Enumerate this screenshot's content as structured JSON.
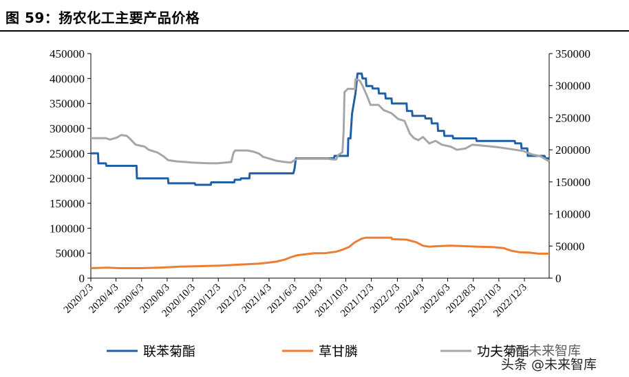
{
  "title": "图 59：扬农化工主要产品价格",
  "watermark": {
    "top": "未来智库",
    "bottom": "头条 @未来智库"
  },
  "chart_data": {
    "type": "line",
    "title": "",
    "x_ticks": [
      "2020/2/3",
      "2020/4/3",
      "2020/6/3",
      "2020/8/3",
      "2020/10/3",
      "2020/12/3",
      "2021/2/3",
      "2021/4/3",
      "2021/6/3",
      "2021/8/3",
      "2021/10/3",
      "2021/12/3",
      "2022/2/3",
      "2022/4/3",
      "2022/6/3",
      "2022/8/3",
      "2022/10/3",
      "2022/12/3"
    ],
    "x_range": [
      "2020-02-03",
      "2023-01-31"
    ],
    "y_left": {
      "lim": [
        0,
        450000
      ],
      "ticks": [
        0,
        50000,
        100000,
        150000,
        200000,
        250000,
        300000,
        350000,
        400000,
        450000
      ]
    },
    "y_right": {
      "lim": [
        0,
        350000
      ],
      "ticks": [
        0,
        50000,
        100000,
        150000,
        200000,
        250000,
        300000,
        350000
      ]
    },
    "legend_position": "bottom",
    "series": [
      {
        "name": "联苯菊酯",
        "axis": "left",
        "color": "#1f5fa8",
        "points": [
          [
            "2020-02-03",
            250000
          ],
          [
            "2020-02-20",
            250000
          ],
          [
            "2020-02-21",
            230000
          ],
          [
            "2020-03-10",
            230000
          ],
          [
            "2020-03-11",
            225000
          ],
          [
            "2020-05-22",
            225000
          ],
          [
            "2020-05-23",
            200000
          ],
          [
            "2020-08-05",
            200000
          ],
          [
            "2020-08-06",
            190000
          ],
          [
            "2020-10-08",
            190000
          ],
          [
            "2020-10-09",
            187000
          ],
          [
            "2020-11-15",
            187000
          ],
          [
            "2020-11-16",
            192000
          ],
          [
            "2021-01-10",
            192000
          ],
          [
            "2021-01-11",
            197000
          ],
          [
            "2021-01-25",
            197000
          ],
          [
            "2021-01-26",
            200000
          ],
          [
            "2021-02-15",
            200000
          ],
          [
            "2021-02-16",
            210000
          ],
          [
            "2021-05-31",
            210000
          ],
          [
            "2021-06-03",
            220000
          ],
          [
            "2021-06-06",
            240000
          ],
          [
            "2021-09-05",
            240000
          ],
          [
            "2021-09-06",
            245000
          ],
          [
            "2021-10-08",
            245000
          ],
          [
            "2021-10-09",
            280000
          ],
          [
            "2021-10-14",
            280000
          ],
          [
            "2021-10-18",
            330000
          ],
          [
            "2021-10-26",
            370000
          ],
          [
            "2021-10-31",
            410000
          ],
          [
            "2021-11-10",
            410000
          ],
          [
            "2021-11-12",
            400000
          ],
          [
            "2021-11-20",
            400000
          ],
          [
            "2021-11-21",
            385000
          ],
          [
            "2021-12-05",
            385000
          ],
          [
            "2021-12-06",
            380000
          ],
          [
            "2021-12-20",
            380000
          ],
          [
            "2021-12-21",
            370000
          ],
          [
            "2022-01-05",
            370000
          ],
          [
            "2022-01-06",
            360000
          ],
          [
            "2022-01-20",
            360000
          ],
          [
            "2022-01-21",
            350000
          ],
          [
            "2022-02-25",
            350000
          ],
          [
            "2022-02-26",
            335000
          ],
          [
            "2022-03-10",
            335000
          ],
          [
            "2022-03-11",
            325000
          ],
          [
            "2022-04-10",
            325000
          ],
          [
            "2022-04-11",
            320000
          ],
          [
            "2022-04-25",
            320000
          ],
          [
            "2022-04-26",
            310000
          ],
          [
            "2022-05-10",
            310000
          ],
          [
            "2022-05-11",
            295000
          ],
          [
            "2022-05-25",
            295000
          ],
          [
            "2022-05-26",
            285000
          ],
          [
            "2022-06-15",
            285000
          ],
          [
            "2022-06-16",
            280000
          ],
          [
            "2022-08-10",
            280000
          ],
          [
            "2022-08-11",
            275000
          ],
          [
            "2022-11-10",
            275000
          ],
          [
            "2022-11-11",
            270000
          ],
          [
            "2022-11-25",
            270000
          ],
          [
            "2022-11-26",
            260000
          ],
          [
            "2022-12-10",
            260000
          ],
          [
            "2022-12-11",
            245000
          ],
          [
            "2023-01-20",
            245000
          ],
          [
            "2023-01-22",
            240000
          ],
          [
            "2023-01-31",
            240000
          ]
        ]
      },
      {
        "name": "草甘膦",
        "axis": "left",
        "color": "#ed7d31",
        "points": [
          [
            "2020-02-03",
            20000
          ],
          [
            "2020-03-15",
            21000
          ],
          [
            "2020-04-10",
            20000
          ],
          [
            "2020-06-01",
            20000
          ],
          [
            "2020-07-15",
            21000
          ],
          [
            "2020-09-01",
            23000
          ],
          [
            "2020-10-15",
            24000
          ],
          [
            "2020-12-10",
            25000
          ],
          [
            "2021-01-20",
            27000
          ],
          [
            "2021-02-10",
            28000
          ],
          [
            "2021-03-10",
            29000
          ],
          [
            "2021-04-01",
            31000
          ],
          [
            "2021-04-20",
            33000
          ],
          [
            "2021-05-10",
            37000
          ],
          [
            "2021-05-25",
            42000
          ],
          [
            "2021-06-10",
            46000
          ],
          [
            "2021-07-01",
            48000
          ],
          [
            "2021-07-20",
            50000
          ],
          [
            "2021-08-15",
            50000
          ],
          [
            "2021-09-10",
            53000
          ],
          [
            "2021-09-25",
            57000
          ],
          [
            "2021-10-10",
            62000
          ],
          [
            "2021-10-25",
            72000
          ],
          [
            "2021-11-10",
            79000
          ],
          [
            "2021-11-20",
            81000
          ],
          [
            "2022-01-20",
            81000
          ],
          [
            "2022-01-21",
            78000
          ],
          [
            "2022-02-25",
            77000
          ],
          [
            "2022-03-20",
            72000
          ],
          [
            "2022-04-05",
            65000
          ],
          [
            "2022-04-20",
            63000
          ],
          [
            "2022-05-10",
            64000
          ],
          [
            "2022-06-10",
            65000
          ],
          [
            "2022-08-15",
            63000
          ],
          [
            "2022-09-20",
            62000
          ],
          [
            "2022-10-15",
            60000
          ],
          [
            "2022-11-01",
            55000
          ],
          [
            "2022-11-20",
            52000
          ],
          [
            "2022-12-15",
            51000
          ],
          [
            "2023-01-05",
            49000
          ],
          [
            "2023-01-31",
            49000
          ]
        ]
      },
      {
        "name": "功夫菊酯",
        "axis": "right",
        "color": "#a6a6a6",
        "points": [
          [
            "2020-02-03",
            218000
          ],
          [
            "2020-03-10",
            218000
          ],
          [
            "2020-03-20",
            216000
          ],
          [
            "2020-04-05",
            219000
          ],
          [
            "2020-04-15",
            223000
          ],
          [
            "2020-04-28",
            222000
          ],
          [
            "2020-05-05",
            218000
          ],
          [
            "2020-05-20",
            208000
          ],
          [
            "2020-06-10",
            205000
          ],
          [
            "2020-06-20",
            200000
          ],
          [
            "2020-07-10",
            196000
          ],
          [
            "2020-07-25",
            190000
          ],
          [
            "2020-08-05",
            184000
          ],
          [
            "2020-08-25",
            182000
          ],
          [
            "2020-09-15",
            181000
          ],
          [
            "2020-10-01",
            180000
          ],
          [
            "2020-11-10",
            179000
          ],
          [
            "2020-12-01",
            179000
          ],
          [
            "2020-12-20",
            180000
          ],
          [
            "2021-01-03",
            181000
          ],
          [
            "2021-01-08",
            195000
          ],
          [
            "2021-01-12",
            199000
          ],
          [
            "2021-02-10",
            199000
          ],
          [
            "2021-02-25",
            197000
          ],
          [
            "2021-03-10",
            194000
          ],
          [
            "2021-03-20",
            189000
          ],
          [
            "2021-04-05",
            186000
          ],
          [
            "2021-04-20",
            183000
          ],
          [
            "2021-05-10",
            181000
          ],
          [
            "2021-05-25",
            180000
          ],
          [
            "2021-06-01",
            183000
          ],
          [
            "2021-06-10",
            186000
          ],
          [
            "2021-08-20",
            186000
          ],
          [
            "2021-09-01",
            185000
          ],
          [
            "2021-09-10",
            185000
          ],
          [
            "2021-09-15",
            192000
          ],
          [
            "2021-09-25",
            196000
          ],
          [
            "2021-09-28",
            230000
          ],
          [
            "2021-09-30",
            290000
          ],
          [
            "2021-10-08",
            295000
          ],
          [
            "2021-10-25",
            295000
          ],
          [
            "2021-10-26",
            310000
          ],
          [
            "2021-11-05",
            308000
          ],
          [
            "2021-11-12",
            300000
          ],
          [
            "2021-11-22",
            285000
          ],
          [
            "2021-12-01",
            270000
          ],
          [
            "2021-12-20",
            270000
          ],
          [
            "2022-01-01",
            262000
          ],
          [
            "2022-01-20",
            257000
          ],
          [
            "2022-02-05",
            248000
          ],
          [
            "2022-02-20",
            245000
          ],
          [
            "2022-03-05",
            225000
          ],
          [
            "2022-03-15",
            218000
          ],
          [
            "2022-03-25",
            215000
          ],
          [
            "2022-04-05",
            220000
          ],
          [
            "2022-04-20",
            210000
          ],
          [
            "2022-05-05",
            214000
          ],
          [
            "2022-05-20",
            208000
          ],
          [
            "2022-06-10",
            205000
          ],
          [
            "2022-06-25",
            200000
          ],
          [
            "2022-07-15",
            202000
          ],
          [
            "2022-08-01",
            208000
          ],
          [
            "2022-09-01",
            206000
          ],
          [
            "2022-10-01",
            204000
          ],
          [
            "2022-11-01",
            201000
          ],
          [
            "2022-12-01",
            198000
          ],
          [
            "2022-12-20",
            193000
          ],
          [
            "2023-01-10",
            190000
          ],
          [
            "2023-01-31",
            182000
          ]
        ]
      }
    ]
  }
}
